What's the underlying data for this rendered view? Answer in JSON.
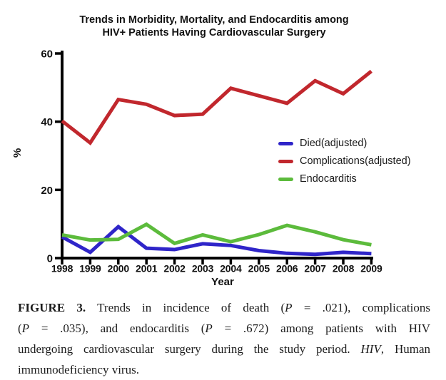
{
  "title": {
    "line1": "Trends in Morbidity, Mortality, and Endocarditis among",
    "line2": "HIV+ Patients Having Cardiovascular Surgery"
  },
  "chart_data": {
    "type": "line",
    "x": [
      1998,
      1999,
      2000,
      2001,
      2002,
      2003,
      2004,
      2005,
      2006,
      2007,
      2008,
      2009
    ],
    "xlabel": "Year",
    "ylabel": "%",
    "ylim": [
      0,
      60
    ],
    "y_ticks": [
      0,
      20,
      40,
      60
    ],
    "grid": false,
    "legend_position": "inside-right-middle",
    "axis_color": "#000000",
    "series": [
      {
        "name": "Died(adjusted)",
        "color": "#2f25c9",
        "values": [
          6.2,
          1.7,
          9.2,
          2.9,
          2.5,
          4.2,
          3.7,
          2.2,
          1.4,
          1.1,
          1.7,
          1.3
        ]
      },
      {
        "name": "Complications(adjusted)",
        "color": "#c1272d",
        "values": [
          40.2,
          33.8,
          46.5,
          45.1,
          41.8,
          42.2,
          49.8,
          47.6,
          45.4,
          52.0,
          48.2,
          54.8
        ]
      },
      {
        "name": "Endocarditis",
        "color": "#5cbb3c",
        "values": [
          6.8,
          5.3,
          5.5,
          9.9,
          4.3,
          6.8,
          4.8,
          6.9,
          9.6,
          7.7,
          5.4,
          3.9
        ]
      }
    ],
    "draw_order": [
      0,
      2,
      1
    ]
  },
  "caption": {
    "lines": [
      [
        {
          "t": "FIGURE 3.",
          "s": "bold"
        },
        {
          "t": " Trends in incidence of death (",
          "s": ""
        },
        {
          "t": "P",
          "s": "i"
        },
        {
          "t": " = .021), complications",
          "s": ""
        }
      ],
      [
        {
          "t": "(",
          "s": ""
        },
        {
          "t": "P",
          "s": "i"
        },
        {
          "t": " = .035), and endocarditis (",
          "s": ""
        },
        {
          "t": "P",
          "s": "i"
        },
        {
          "t": " = .672) among patients with HIV",
          "s": ""
        }
      ],
      [
        {
          "t": "undergoing cardiovascular surgery during the study period. ",
          "s": ""
        },
        {
          "t": "HIV",
          "s": "i"
        },
        {
          "t": ", Human",
          "s": ""
        }
      ],
      [
        {
          "t": "immunodeficiency virus.",
          "s": ""
        }
      ]
    ]
  }
}
